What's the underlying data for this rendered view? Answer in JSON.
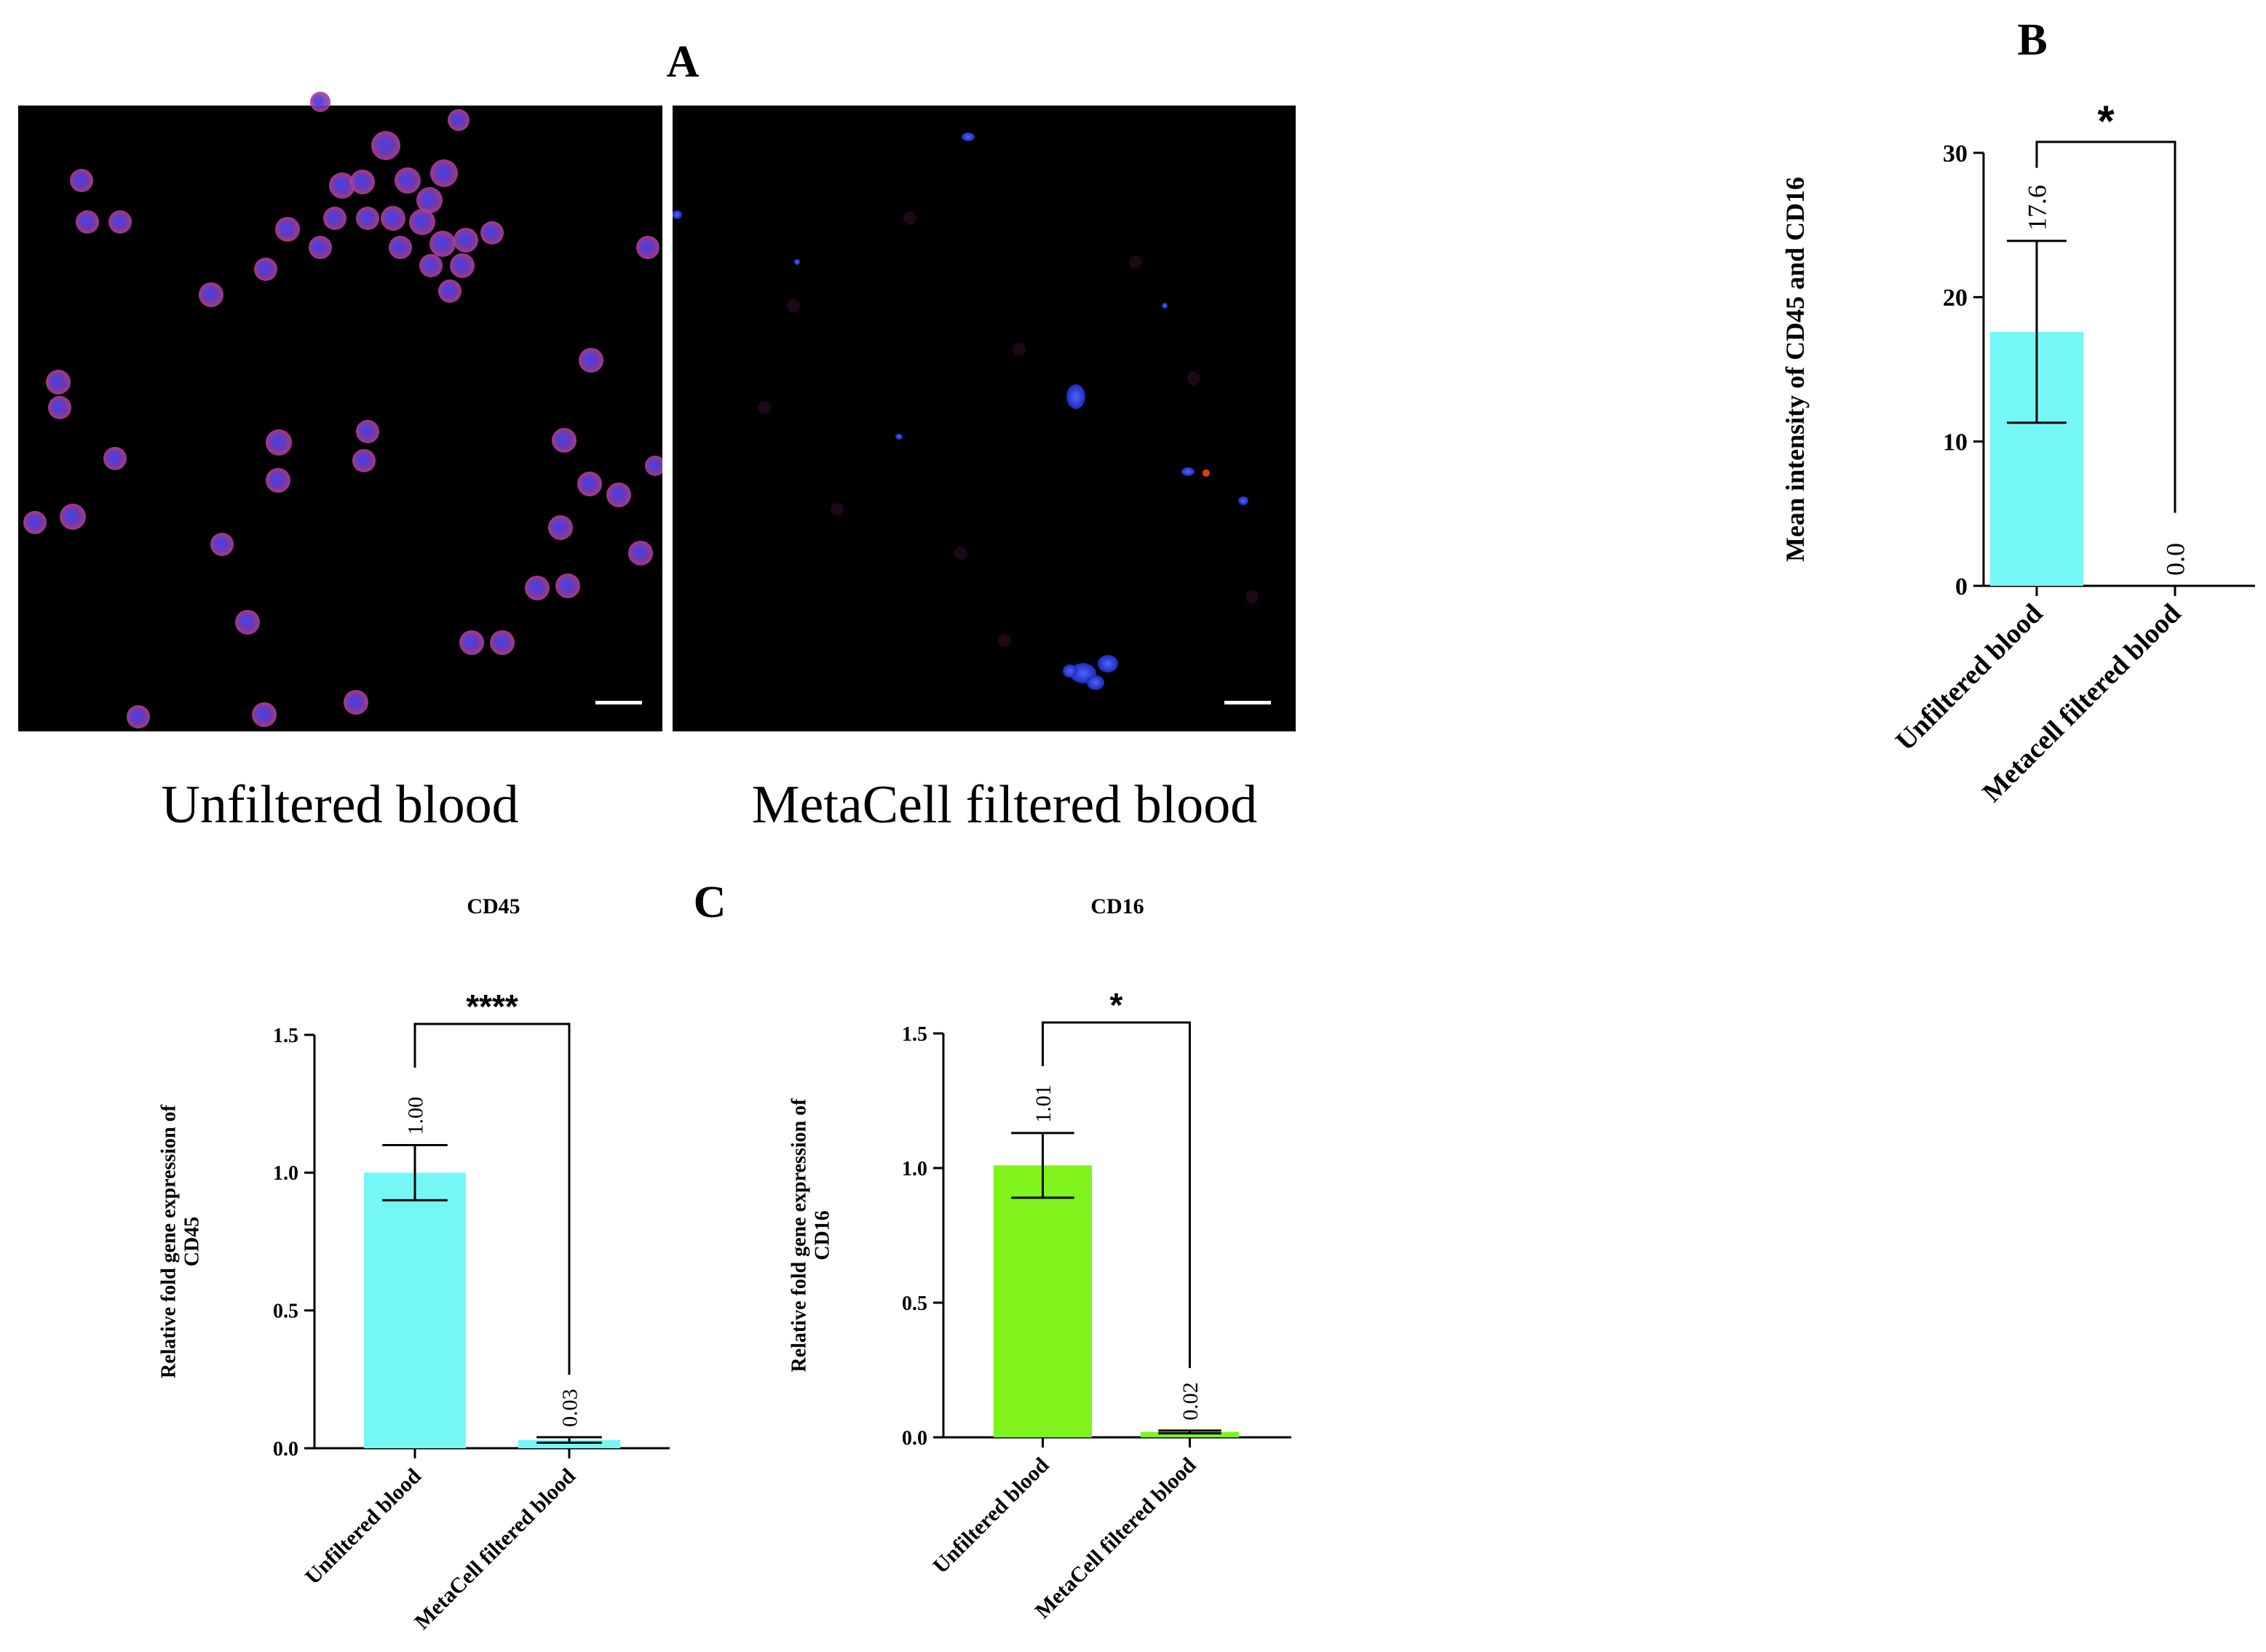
{
  "panel_letters": {
    "a": "A",
    "b": "B",
    "c": "C"
  },
  "micrographs": [
    {
      "caption": "Unfiltered blood"
    },
    {
      "caption": "MetaCell filtered blood"
    }
  ],
  "colors": {
    "cyan_bar": "#76F7F7",
    "green_bar": "#80F21C",
    "nucleus_blue": "#3B50F0",
    "membrane_magenta": "#A8389A",
    "background": "#000000"
  },
  "chart_data": [
    {
      "type": "bar",
      "panel": "B",
      "title": "",
      "ylabel": "Mean intensity of CD45 and CD16",
      "categories": [
        "Unfiltered blood",
        "Metacell filtered blood"
      ],
      "values": [
        17.6,
        0.0
      ],
      "error_bars": [
        6.3,
        0.0
      ],
      "data_labels": [
        "17.6",
        "0.0"
      ],
      "ylim": [
        0,
        30
      ],
      "yticks": [
        0,
        10,
        20,
        30
      ],
      "ytick_labels": [
        "0",
        "10",
        "20",
        "30"
      ],
      "significance": "*",
      "bar_color": "#76F7F7"
    },
    {
      "type": "bar",
      "panel": "C",
      "title": "CD45",
      "ylabel": "Relative fold gene expression of CD45",
      "categories": [
        "Unfiltered blood",
        "MetaCell filtered blood"
      ],
      "values": [
        1.0,
        0.03
      ],
      "error_bars": [
        0.1,
        0.01
      ],
      "data_labels": [
        "1.00",
        "0.03"
      ],
      "ylim": [
        0,
        1.5
      ],
      "yticks": [
        0,
        0.5,
        1.0,
        1.5
      ],
      "ytick_labels": [
        "0.0",
        "0.5",
        "1.0",
        "1.5"
      ],
      "significance": "****",
      "bar_color": "#76F7F7"
    },
    {
      "type": "bar",
      "panel": "C",
      "title": "CD16",
      "ylabel": "Relative fold gene expression of CD16",
      "categories": [
        "Unfiltered blood",
        "MetaCell filtered blood"
      ],
      "values": [
        1.01,
        0.02
      ],
      "error_bars": [
        0.12,
        0.005
      ],
      "data_labels": [
        "1.01",
        "0.02"
      ],
      "ylim": [
        0,
        1.5
      ],
      "yticks": [
        0,
        0.5,
        1.0,
        1.5
      ],
      "ytick_labels": [
        "0.0",
        "0.5",
        "1.0",
        "1.5"
      ],
      "significance": "*",
      "bar_color": "#80F21C"
    }
  ]
}
